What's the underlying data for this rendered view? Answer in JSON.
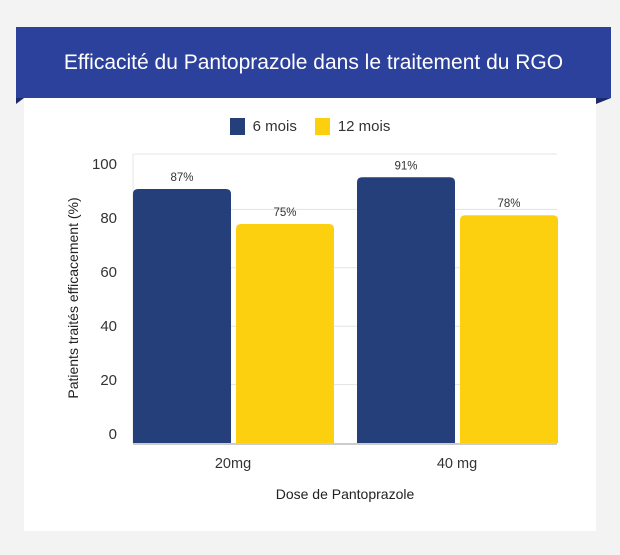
{
  "chart_data": {
    "type": "bar",
    "title": "Efficacité du Pantoprazole dans le traitement du RGO",
    "xlabel": "Dose de Pantoprazole",
    "ylabel": "Patients traités efficacement (%)",
    "categories": [
      "20mg",
      "40 mg"
    ],
    "series": [
      {
        "name": "6 mois",
        "values": [
          87,
          91
        ],
        "labels": [
          "87%",
          "91%"
        ],
        "color": "#243f7a"
      },
      {
        "name": "12 mois",
        "values": [
          75,
          78
        ],
        "labels": [
          "75%",
          "78%"
        ],
        "color": "#fdd00f"
      }
    ],
    "yticks": [
      "0",
      "20",
      "40",
      "60",
      "80",
      "100"
    ],
    "ylim": [
      0,
      100
    ],
    "grid": true,
    "legend": "top-center"
  },
  "colors": {
    "banner": "#2c419b",
    "background": "#f3f3f3"
  }
}
